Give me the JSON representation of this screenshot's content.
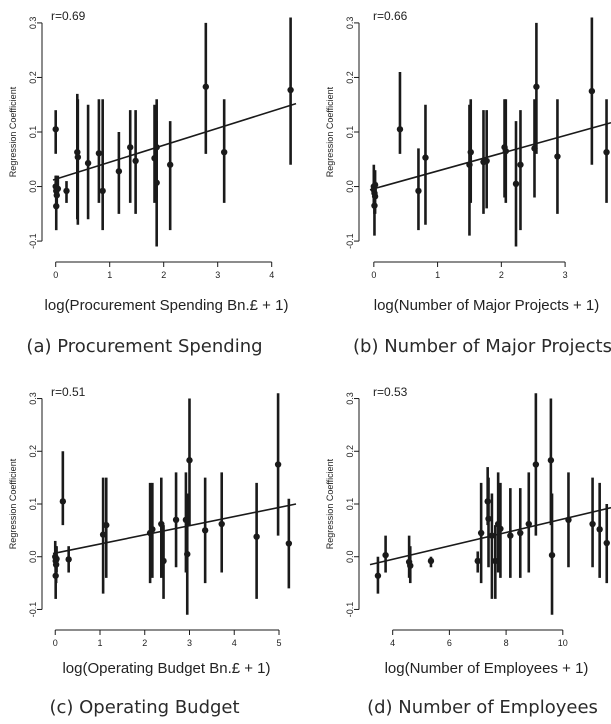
{
  "figure": {
    "captions": [
      "(a) Procurement Spending",
      "(b) Number of Major Projects",
      "(c) Operating Budget",
      "(d) Number of Employees"
    ]
  },
  "style": {
    "ink": "#1a1a1a",
    "text": "#222222",
    "caption_text": "#2a2a2a"
  },
  "chart_data": [
    {
      "type": "scatter",
      "annotation": "r=0.69",
      "xlabel": "log(Procurement Spending Bn.£ + 1)",
      "ylabel": "Regression Coefficient",
      "xlim": [
        -0.05,
        4.45
      ],
      "ylim": [
        -0.12,
        0.32
      ],
      "xticks": [
        0,
        1,
        2,
        3,
        4
      ],
      "yticks": [
        -0.1,
        0.0,
        0.1,
        0.2,
        0.3
      ],
      "ytick_labels": [
        "-0.1",
        "0.0",
        "0.1",
        "0.2",
        "0.3"
      ],
      "grid": false,
      "error_bars": true,
      "fit_line": [
        [
          -0.05,
          0.012
        ],
        [
          4.45,
          0.152
        ]
      ],
      "points": [
        {
          "x": 0.0,
          "y": 0.105,
          "lo": 0.06,
          "hi": 0.14
        },
        {
          "x": 0.0,
          "y": 0.0,
          "lo": -0.02,
          "hi": 0.02
        },
        {
          "x": 0.01,
          "y": -0.008,
          "lo": -0.03,
          "hi": 0.02
        },
        {
          "x": 0.02,
          "y": -0.016,
          "lo": -0.04,
          "hi": 0.01
        },
        {
          "x": 0.01,
          "y": -0.036,
          "lo": -0.08,
          "hi": 0.0
        },
        {
          "x": 0.04,
          "y": -0.004,
          "lo": -0.02,
          "hi": 0.02
        },
        {
          "x": 0.2,
          "y": -0.008,
          "lo": -0.03,
          "hi": 0.01
        },
        {
          "x": 0.4,
          "y": 0.063,
          "lo": -0.06,
          "hi": 0.17
        },
        {
          "x": 0.41,
          "y": 0.054,
          "lo": -0.07,
          "hi": 0.16
        },
        {
          "x": 0.6,
          "y": 0.043,
          "lo": -0.06,
          "hi": 0.15
        },
        {
          "x": 0.8,
          "y": 0.061,
          "lo": -0.03,
          "hi": 0.16
        },
        {
          "x": 0.87,
          "y": -0.008,
          "lo": -0.08,
          "hi": 0.16
        },
        {
          "x": 1.17,
          "y": 0.028,
          "lo": -0.05,
          "hi": 0.1
        },
        {
          "x": 1.38,
          "y": 0.072,
          "lo": -0.03,
          "hi": 0.14
        },
        {
          "x": 1.48,
          "y": 0.047,
          "lo": -0.05,
          "hi": 0.14
        },
        {
          "x": 1.83,
          "y": 0.052,
          "lo": -0.03,
          "hi": 0.15
        },
        {
          "x": 1.87,
          "y": 0.007,
          "lo": -0.11,
          "hi": 0.12
        },
        {
          "x": 1.87,
          "y": 0.072,
          "lo": -0.02,
          "hi": 0.16
        },
        {
          "x": 2.12,
          "y": 0.04,
          "lo": -0.08,
          "hi": 0.12
        },
        {
          "x": 2.78,
          "y": 0.183,
          "lo": 0.06,
          "hi": 0.3
        },
        {
          "x": 3.12,
          "y": 0.063,
          "lo": -0.03,
          "hi": 0.16
        },
        {
          "x": 4.35,
          "y": 0.177,
          "lo": 0.04,
          "hi": 0.31
        }
      ]
    },
    {
      "type": "scatter",
      "annotation": "r=0.66",
      "xlabel": "log(Number of Major Projects + 1)",
      "ylabel": "Regression Coefficient",
      "xlim": [
        -0.06,
        3.72
      ],
      "ylim": [
        -0.12,
        0.32
      ],
      "xticks": [
        0,
        1,
        2,
        3
      ],
      "yticks": [
        -0.1,
        0.0,
        0.1,
        0.2,
        0.3
      ],
      "ytick_labels": [
        "-0.1",
        "0.0",
        "0.1",
        "0.2",
        "0.3"
      ],
      "grid": false,
      "error_bars": true,
      "fit_line": [
        [
          -0.06,
          -0.006
        ],
        [
          3.72,
          0.117
        ]
      ],
      "points": [
        {
          "x": 0.0,
          "y": 0.0,
          "lo": -0.03,
          "hi": 0.04
        },
        {
          "x": 0.0,
          "y": -0.006,
          "lo": -0.04,
          "hi": 0.03
        },
        {
          "x": 0.01,
          "y": -0.012,
          "lo": -0.05,
          "hi": 0.02
        },
        {
          "x": 0.01,
          "y": -0.035,
          "lo": -0.09,
          "hi": 0.0
        },
        {
          "x": 0.02,
          "y": -0.018,
          "lo": -0.05,
          "hi": 0.01
        },
        {
          "x": 0.02,
          "y": 0.003,
          "lo": -0.02,
          "hi": 0.03
        },
        {
          "x": 0.41,
          "y": 0.105,
          "lo": 0.06,
          "hi": 0.21
        },
        {
          "x": 0.7,
          "y": -0.008,
          "lo": -0.08,
          "hi": 0.07
        },
        {
          "x": 0.81,
          "y": 0.053,
          "lo": -0.07,
          "hi": 0.15
        },
        {
          "x": 1.5,
          "y": 0.04,
          "lo": -0.09,
          "hi": 0.15
        },
        {
          "x": 1.52,
          "y": 0.063,
          "lo": -0.03,
          "hi": 0.16
        },
        {
          "x": 1.72,
          "y": 0.045,
          "lo": -0.05,
          "hi": 0.14
        },
        {
          "x": 1.77,
          "y": 0.047,
          "lo": -0.04,
          "hi": 0.14
        },
        {
          "x": 2.05,
          "y": 0.072,
          "lo": -0.02,
          "hi": 0.16
        },
        {
          "x": 2.07,
          "y": 0.065,
          "lo": -0.03,
          "hi": 0.16
        },
        {
          "x": 2.23,
          "y": 0.005,
          "lo": -0.11,
          "hi": 0.12
        },
        {
          "x": 2.3,
          "y": 0.04,
          "lo": -0.08,
          "hi": 0.14
        },
        {
          "x": 2.55,
          "y": 0.183,
          "lo": 0.06,
          "hi": 0.3
        },
        {
          "x": 2.52,
          "y": 0.07,
          "lo": -0.02,
          "hi": 0.16
        },
        {
          "x": 2.88,
          "y": 0.055,
          "lo": -0.05,
          "hi": 0.16
        },
        {
          "x": 3.42,
          "y": 0.175,
          "lo": 0.04,
          "hi": 0.31
        },
        {
          "x": 3.65,
          "y": 0.063,
          "lo": -0.03,
          "hi": 0.16
        }
      ]
    },
    {
      "type": "scatter",
      "annotation": "r=0.51",
      "xlabel": "log(Operating Budget Bn.£ + 1)",
      "ylabel": "Regression Coefficient",
      "xlim": [
        -0.05,
        5.38
      ],
      "ylim": [
        -0.12,
        0.32
      ],
      "xticks": [
        0,
        1,
        2,
        3,
        4,
        5
      ],
      "yticks": [
        -0.1,
        0.0,
        0.1,
        0.2,
        0.3
      ],
      "ytick_labels": [
        "-0.1",
        "0.0",
        "0.1",
        "0.2",
        "0.3"
      ],
      "grid": false,
      "error_bars": true,
      "fit_line": [
        [
          -0.05,
          0.006
        ],
        [
          5.38,
          0.1
        ]
      ],
      "points": [
        {
          "x": 0.0,
          "y": 0.0,
          "lo": -0.02,
          "hi": 0.03
        },
        {
          "x": 0.01,
          "y": -0.008,
          "lo": -0.03,
          "hi": 0.02
        },
        {
          "x": 0.02,
          "y": -0.015,
          "lo": -0.05,
          "hi": 0.01
        },
        {
          "x": 0.01,
          "y": -0.036,
          "lo": -0.08,
          "hi": 0.0
        },
        {
          "x": 0.03,
          "y": -0.004,
          "lo": -0.03,
          "hi": 0.02
        },
        {
          "x": 0.17,
          "y": 0.105,
          "lo": 0.06,
          "hi": 0.2
        },
        {
          "x": 0.3,
          "y": -0.005,
          "lo": -0.03,
          "hi": 0.02
        },
        {
          "x": 1.07,
          "y": 0.042,
          "lo": -0.07,
          "hi": 0.15
        },
        {
          "x": 1.14,
          "y": 0.06,
          "lo": -0.04,
          "hi": 0.15
        },
        {
          "x": 2.12,
          "y": 0.045,
          "lo": -0.05,
          "hi": 0.14
        },
        {
          "x": 2.17,
          "y": 0.052,
          "lo": -0.04,
          "hi": 0.14
        },
        {
          "x": 2.37,
          "y": 0.062,
          "lo": -0.04,
          "hi": 0.15
        },
        {
          "x": 2.42,
          "y": -0.008,
          "lo": -0.08,
          "hi": 0.06
        },
        {
          "x": 2.7,
          "y": 0.07,
          "lo": -0.02,
          "hi": 0.16
        },
        {
          "x": 2.92,
          "y": 0.07,
          "lo": -0.03,
          "hi": 0.16
        },
        {
          "x": 2.95,
          "y": 0.005,
          "lo": -0.11,
          "hi": 0.12
        },
        {
          "x": 3.0,
          "y": 0.183,
          "lo": 0.06,
          "hi": 0.3
        },
        {
          "x": 3.35,
          "y": 0.05,
          "lo": -0.05,
          "hi": 0.15
        },
        {
          "x": 3.72,
          "y": 0.062,
          "lo": -0.03,
          "hi": 0.16
        },
        {
          "x": 4.5,
          "y": 0.038,
          "lo": -0.08,
          "hi": 0.14
        },
        {
          "x": 4.98,
          "y": 0.175,
          "lo": 0.04,
          "hi": 0.31
        },
        {
          "x": 5.22,
          "y": 0.025,
          "lo": -0.06,
          "hi": 0.11
        }
      ]
    },
    {
      "type": "scatter",
      "annotation": "r=0.53",
      "xlabel": "log(Number of Employees + 1)",
      "ylabel": "Regression Coefficient",
      "xlim": [
        3.2,
        11.7
      ],
      "ylim": [
        -0.12,
        0.32
      ],
      "xticks": [
        4,
        6,
        8,
        10
      ],
      "yticks": [
        -0.1,
        0.0,
        0.1,
        0.2,
        0.3
      ],
      "ytick_labels": [
        "-0.1",
        "0.0",
        "0.1",
        "0.2",
        "0.3"
      ],
      "grid": false,
      "error_bars": true,
      "fit_line": [
        [
          3.2,
          -0.015
        ],
        [
          11.7,
          0.093
        ]
      ],
      "points": [
        {
          "x": 3.48,
          "y": -0.036,
          "lo": -0.07,
          "hi": 0.0
        },
        {
          "x": 3.75,
          "y": 0.003,
          "lo": -0.03,
          "hi": 0.04
        },
        {
          "x": 4.58,
          "y": -0.01,
          "lo": -0.04,
          "hi": 0.04
        },
        {
          "x": 4.62,
          "y": -0.017,
          "lo": -0.05,
          "hi": 0.02
        },
        {
          "x": 5.35,
          "y": -0.008,
          "lo": -0.02,
          "hi": 0.0
        },
        {
          "x": 7.0,
          "y": -0.008,
          "lo": -0.03,
          "hi": 0.01
        },
        {
          "x": 7.12,
          "y": 0.045,
          "lo": -0.05,
          "hi": 0.14
        },
        {
          "x": 7.35,
          "y": 0.105,
          "lo": 0.06,
          "hi": 0.17
        },
        {
          "x": 7.38,
          "y": 0.072,
          "lo": -0.02,
          "hi": 0.15
        },
        {
          "x": 7.5,
          "y": 0.04,
          "lo": -0.08,
          "hi": 0.12
        },
        {
          "x": 7.62,
          "y": -0.008,
          "lo": -0.08,
          "hi": 0.06
        },
        {
          "x": 7.72,
          "y": 0.062,
          "lo": -0.03,
          "hi": 0.16
        },
        {
          "x": 7.8,
          "y": 0.053,
          "lo": -0.04,
          "hi": 0.14
        },
        {
          "x": 8.15,
          "y": 0.04,
          "lo": -0.04,
          "hi": 0.13
        },
        {
          "x": 8.5,
          "y": 0.045,
          "lo": -0.04,
          "hi": 0.13
        },
        {
          "x": 8.8,
          "y": 0.062,
          "lo": -0.03,
          "hi": 0.16
        },
        {
          "x": 9.05,
          "y": 0.175,
          "lo": 0.04,
          "hi": 0.31
        },
        {
          "x": 9.58,
          "y": 0.183,
          "lo": 0.06,
          "hi": 0.3
        },
        {
          "x": 9.62,
          "y": 0.003,
          "lo": -0.11,
          "hi": 0.12
        },
        {
          "x": 10.2,
          "y": 0.07,
          "lo": -0.02,
          "hi": 0.16
        },
        {
          "x": 11.05,
          "y": 0.062,
          "lo": -0.02,
          "hi": 0.15
        },
        {
          "x": 11.3,
          "y": 0.052,
          "lo": -0.04,
          "hi": 0.14
        },
        {
          "x": 11.55,
          "y": 0.026,
          "lo": -0.05,
          "hi": 0.1
        }
      ]
    }
  ]
}
